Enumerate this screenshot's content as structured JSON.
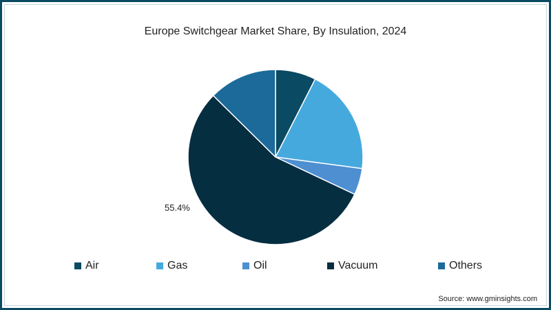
{
  "title": "Europe Switchgear Market Share, By Insulation, 2024",
  "source": "Source: www.gminsights.com",
  "frame_color": "#0b4a63",
  "chart_data": {
    "type": "pie",
    "title": "Europe Switchgear Market Share, By Insulation, 2024",
    "categories": [
      "Air",
      "Gas",
      "Oil",
      "Vacuum",
      "Others"
    ],
    "values": [
      7.5,
      19.6,
      4.9,
      55.4,
      12.6
    ],
    "colors": [
      "#0a4a62",
      "#46a9de",
      "#4d8fd1",
      "#062e41",
      "#1b6a9a"
    ],
    "labels_shown": [
      {
        "category": "Vacuum",
        "text": "55.4%"
      }
    ],
    "start_angle_deg": 0,
    "direction": "clockwise",
    "legend_position": "bottom",
    "unit": "%"
  },
  "legend": [
    {
      "label": "Air",
      "color": "#0a4a62"
    },
    {
      "label": "Gas",
      "color": "#46a9de"
    },
    {
      "label": "Oil",
      "color": "#4d8fd1"
    },
    {
      "label": "Vacuum",
      "color": "#062e41"
    },
    {
      "label": "Others",
      "color": "#1b6a9a"
    }
  ],
  "vacuum_label": "55.4%"
}
